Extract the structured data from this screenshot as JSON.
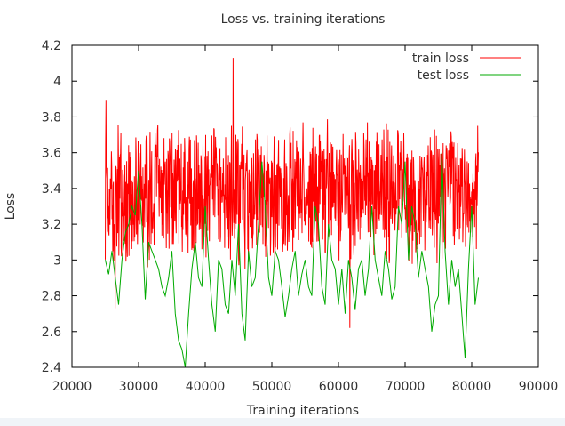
{
  "chart_data": {
    "type": "line",
    "title": "Loss vs. training iterations",
    "xlabel": "Training iterations",
    "ylabel": "Loss",
    "xlim": [
      20000,
      90000
    ],
    "ylim": [
      2.4,
      4.2
    ],
    "x_ticks": [
      20000,
      30000,
      40000,
      50000,
      60000,
      70000,
      80000,
      90000
    ],
    "y_ticks": [
      2.4,
      2.6,
      2.8,
      3.0,
      3.2,
      3.4,
      3.6,
      3.8,
      4.0,
      4.2
    ],
    "legend_position": "top-right",
    "grid": false,
    "series": [
      {
        "name": "train loss",
        "color": "#ff0000",
        "x_range": [
          25000,
          81000
        ],
        "baseline": 3.37,
        "min": 2.62,
        "max": 4.13,
        "note_points": [
          {
            "x": 25100,
            "y": 3.89
          },
          {
            "x": 44200,
            "y": 4.13
          },
          {
            "x": 46000,
            "y": 2.95
          },
          {
            "x": 61700,
            "y": 2.62
          },
          {
            "x": 26500,
            "y": 2.73
          },
          {
            "x": 80900,
            "y": 3.75
          }
        ]
      },
      {
        "name": "test loss",
        "color": "#00aa00",
        "x": [
          25000,
          25500,
          26000,
          26500,
          27000,
          27500,
          28000,
          28500,
          29000,
          29500,
          30000,
          30500,
          31000,
          31500,
          32000,
          32500,
          33000,
          33500,
          34000,
          34500,
          35000,
          35500,
          36000,
          36500,
          37000,
          37500,
          38000,
          38500,
          39000,
          39500,
          40000,
          40500,
          41000,
          41500,
          42000,
          42500,
          43000,
          43500,
          44000,
          44500,
          45000,
          45500,
          46000,
          46500,
          47000,
          47500,
          48000,
          48500,
          49000,
          49500,
          50000,
          50500,
          51000,
          51500,
          52000,
          52500,
          53000,
          53500,
          54000,
          54500,
          55000,
          55500,
          56000,
          56500,
          57000,
          57500,
          58000,
          58500,
          59000,
          59500,
          60000,
          60500,
          61000,
          61500,
          62000,
          62500,
          63000,
          63500,
          64000,
          64500,
          65000,
          65500,
          66000,
          66500,
          67000,
          67500,
          68000,
          68500,
          69000,
          69500,
          70000,
          70500,
          71000,
          71500,
          72000,
          72500,
          73000,
          73500,
          74000,
          74500,
          75000,
          75500,
          76000,
          76500,
          77000,
          77500,
          78000,
          78500,
          79000,
          79500,
          80000,
          80500,
          81000
        ],
        "values": [
          3.0,
          2.92,
          3.05,
          2.9,
          2.75,
          3.0,
          3.15,
          3.2,
          3.3,
          3.25,
          3.5,
          3.2,
          2.78,
          3.1,
          3.05,
          3.0,
          2.95,
          2.85,
          2.8,
          2.9,
          3.05,
          2.7,
          2.55,
          2.5,
          2.4,
          2.7,
          2.95,
          3.1,
          2.9,
          2.85,
          3.3,
          3.0,
          2.75,
          2.6,
          3.0,
          2.95,
          2.75,
          2.7,
          3.0,
          2.8,
          3.2,
          2.7,
          2.55,
          3.05,
          2.85,
          2.9,
          3.2,
          3.55,
          3.3,
          2.9,
          2.8,
          3.05,
          3.0,
          2.85,
          2.68,
          2.8,
          2.95,
          3.05,
          2.8,
          2.92,
          3.0,
          2.85,
          2.8,
          3.3,
          3.2,
          2.85,
          2.75,
          3.2,
          3.0,
          2.95,
          2.75,
          2.95,
          2.7,
          3.0,
          2.9,
          2.72,
          2.95,
          3.0,
          2.8,
          2.95,
          3.3,
          3.0,
          2.9,
          2.8,
          3.05,
          2.95,
          2.78,
          2.85,
          3.3,
          3.2,
          3.55,
          3.0,
          3.3,
          3.2,
          2.9,
          3.05,
          2.95,
          2.85,
          2.6,
          2.75,
          2.8,
          3.6,
          3.05,
          2.75,
          3.0,
          2.85,
          2.95,
          2.7,
          2.45,
          2.95,
          3.3,
          2.75,
          2.9
        ]
      }
    ]
  }
}
